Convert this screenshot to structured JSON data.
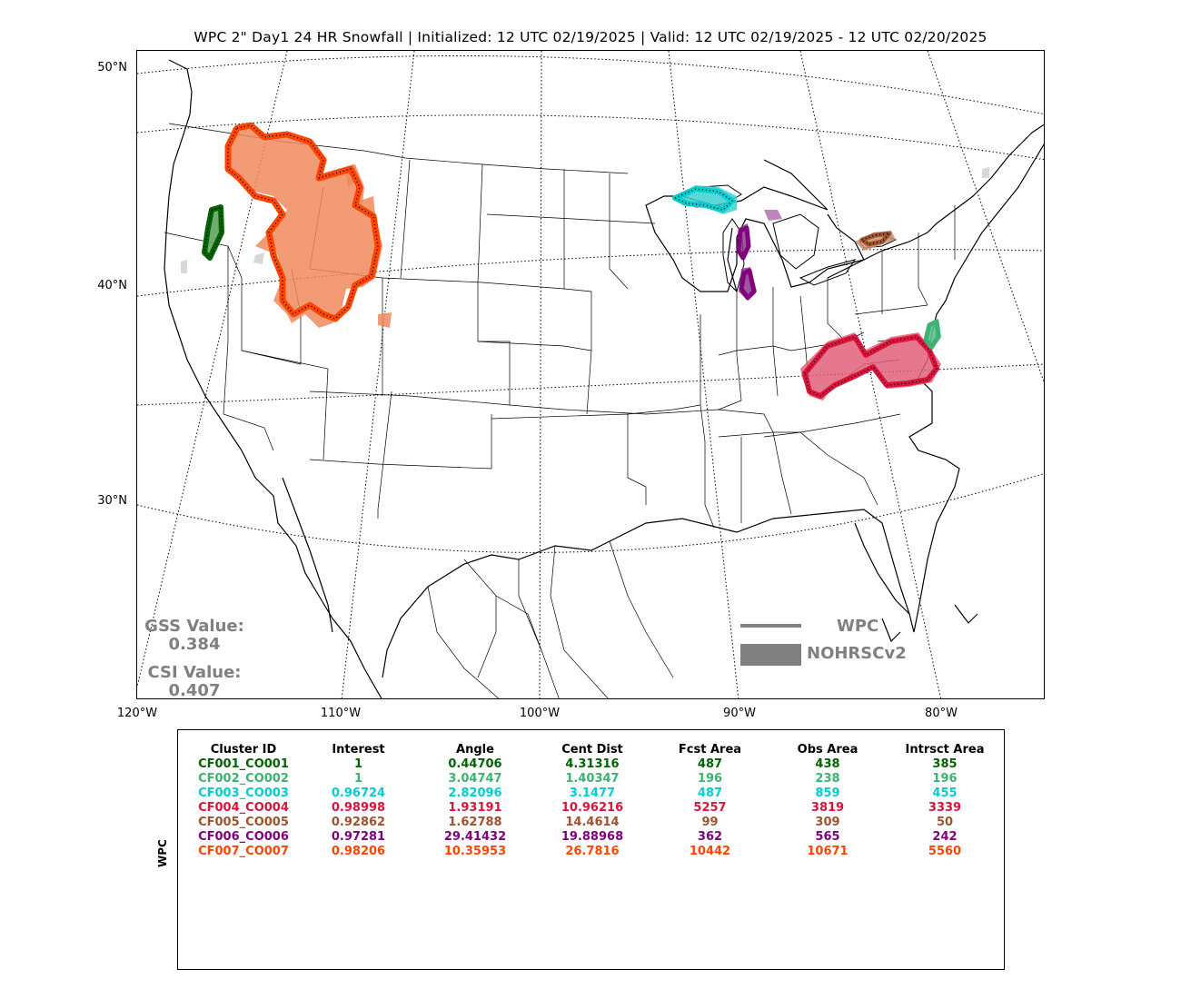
{
  "title": "WPC 2\" Day1 24 HR Snowfall | Initialized: 12 UTC 02/19/2025 | Valid: 12 UTC 02/19/2025 - 12 UTC 02/20/2025",
  "lat_labels": [
    "50°N",
    "40°N",
    "30°N"
  ],
  "lon_labels": [
    "120°W",
    "110°W",
    "100°W",
    "90°W",
    "80°W"
  ],
  "scores": {
    "gss_label": "GSS Value:",
    "gss_value": "0.384",
    "csi_label": "CSI Value:",
    "csi_value": "0.407"
  },
  "legend": {
    "forecast": "WPC",
    "observed": "NOHRSCv2"
  },
  "table": {
    "side_label": "WPC",
    "headers": [
      "Cluster ID",
      "Interest",
      "Angle",
      "Cent Dist",
      "Fcst Area",
      "Obs Area",
      "Intrsct Area"
    ],
    "rows": [
      {
        "color": "#006400",
        "cells": [
          "CF001_CO001",
          "1",
          "0.44706",
          "4.31316",
          "487",
          "438",
          "385"
        ]
      },
      {
        "color": "#3cb371",
        "cells": [
          "CF002_CO002",
          "1",
          "3.04747",
          "1.40347",
          "196",
          "238",
          "196"
        ]
      },
      {
        "color": "#00ced1",
        "cells": [
          "CF003_CO003",
          "0.96724",
          "2.82096",
          "3.1477",
          "487",
          "859",
          "455"
        ]
      },
      {
        "color": "#dc143c",
        "cells": [
          "CF004_CO004",
          "0.98998",
          "1.93191",
          "10.96216",
          "5257",
          "3819",
          "3339"
        ]
      },
      {
        "color": "#a0522d",
        "cells": [
          "CF005_CO005",
          "0.92862",
          "1.62788",
          "14.4614",
          "99",
          "309",
          "50"
        ]
      },
      {
        "color": "#800080",
        "cells": [
          "CF006_CO006",
          "0.97281",
          "29.41432",
          "19.88968",
          "362",
          "565",
          "242"
        ]
      },
      {
        "color": "#ff4500",
        "cells": [
          "CF007_CO007",
          "0.98206",
          "10.35953",
          "26.7816",
          "10442",
          "10671",
          "5560"
        ]
      }
    ]
  }
}
